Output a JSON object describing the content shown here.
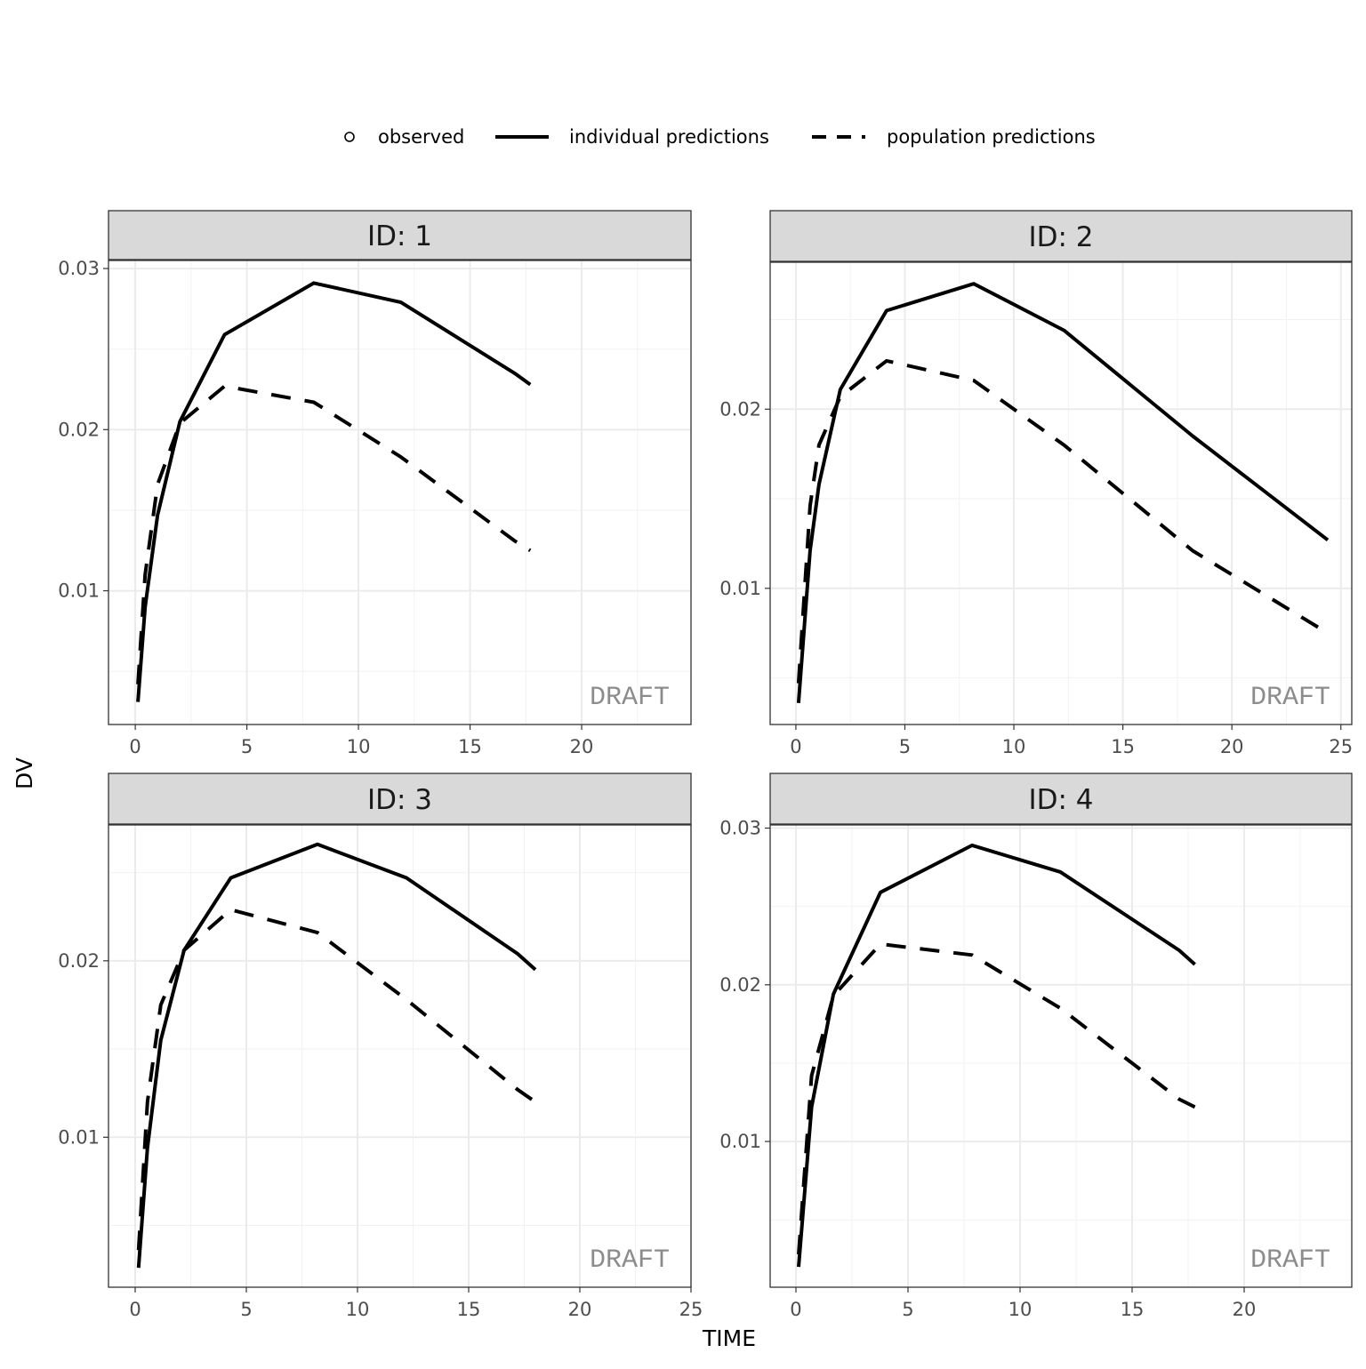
{
  "chart_data": {
    "type": "line",
    "xlabel": "TIME",
    "ylabel": "DV",
    "legend": {
      "placement": "top",
      "entries": [
        {
          "label": "observed",
          "style": "point"
        },
        {
          "label": "individual predictions",
          "style": "solid"
        },
        {
          "label": "population predictions",
          "style": "dashed"
        }
      ]
    },
    "watermark": "DRAFT",
    "grid": true,
    "panels": [
      {
        "strip": "ID: 1",
        "xlim": [
          -1.2,
          24.9
        ],
        "ylim": [
          0.0017,
          0.0305
        ],
        "xticks": [
          0,
          5,
          10,
          15,
          20
        ],
        "yticks": [
          0.01,
          0.02,
          0.03
        ],
        "xtick_labels": [
          "0",
          "5",
          "10",
          "15",
          "20"
        ],
        "ytick_labels": [
          "0.01",
          "0.02",
          "0.03"
        ],
        "series": [
          {
            "name": "individual predictions",
            "x": [
              0.12,
              0.44,
              1.0,
              2.0,
              4.0,
              8.0,
              11.9,
              17.0,
              17.7
            ],
            "y": [
              0.0031,
              0.009,
              0.0147,
              0.0205,
              0.0259,
              0.0291,
              0.0279,
              0.0235,
              0.0228
            ]
          },
          {
            "name": "population predictions",
            "x": [
              0.12,
              0.44,
              1.0,
              2.0,
              4.0,
              8.0,
              11.9,
              17.0,
              17.7
            ],
            "y": [
              0.0042,
              0.011,
              0.0166,
              0.0204,
              0.0227,
              0.0217,
              0.0183,
              0.0131,
              0.0125
            ]
          }
        ]
      },
      {
        "strip": "ID: 2",
        "xlim": [
          -1.18,
          25.5
        ],
        "ylim": [
          0.0024,
          0.0282
        ],
        "xticks": [
          0,
          5,
          10,
          15,
          20,
          25
        ],
        "yticks": [
          0.01,
          0.02
        ],
        "xtick_labels": [
          "0",
          "5",
          "10",
          "15",
          "20",
          "25"
        ],
        "ytick_labels": [
          "0.01",
          "0.02"
        ],
        "series": [
          {
            "name": "individual predictions",
            "x": [
              0.12,
              0.65,
              1.06,
              2.04,
              4.16,
              8.16,
              12.3,
              18.2,
              24.4
            ],
            "y": [
              0.0036,
              0.0121,
              0.0158,
              0.0211,
              0.0255,
              0.027,
              0.0244,
              0.0185,
              0.0127
            ]
          },
          {
            "name": "population predictions",
            "x": [
              0.12,
              0.65,
              1.06,
              2.04,
              4.16,
              8.16,
              12.3,
              18.2,
              24.4
            ],
            "y": [
              0.0047,
              0.0146,
              0.018,
              0.0207,
              0.0227,
              0.0216,
              0.018,
              0.0121,
              0.0075
            ]
          }
        ]
      },
      {
        "strip": "ID: 3",
        "xlim": [
          -1.2,
          25.0
        ],
        "ylim": [
          0.0015,
          0.0277
        ],
        "xticks": [
          0,
          5,
          10,
          15,
          20,
          25
        ],
        "yticks": [
          0.01,
          0.02
        ],
        "xtick_labels": [
          "0",
          "5",
          "10",
          "15",
          "20",
          "25"
        ],
        "ytick_labels": [
          "0.01",
          "0.02"
        ],
        "series": [
          {
            "name": "individual predictions",
            "x": [
              0.15,
              0.55,
              1.15,
              2.2,
              4.3,
              8.2,
              12.2,
              17.2,
              18.0
            ],
            "y": [
              0.0026,
              0.0094,
              0.0155,
              0.0206,
              0.0247,
              0.0266,
              0.0247,
              0.0204,
              0.0195
            ]
          },
          {
            "name": "population predictions",
            "x": [
              0.15,
              0.55,
              1.15,
              2.2,
              4.3,
              8.2,
              12.2,
              17.2,
              18.0
            ],
            "y": [
              0.0036,
              0.012,
              0.0175,
              0.0206,
              0.0229,
              0.0216,
              0.0178,
              0.0127,
              0.012
            ]
          }
        ]
      },
      {
        "strip": "ID: 4",
        "xlim": [
          -1.15,
          24.8
        ],
        "ylim": [
          0.0007,
          0.0302
        ],
        "xticks": [
          0,
          5,
          10,
          15,
          20
        ],
        "yticks": [
          0.01,
          0.02,
          0.03
        ],
        "xtick_labels": [
          "0",
          "5",
          "10",
          "15",
          "20"
        ],
        "ytick_labels": [
          "0.01",
          "0.02",
          "0.03"
        ],
        "series": [
          {
            "name": "individual predictions",
            "x": [
              0.12,
              0.7,
              1.67,
              3.77,
              7.86,
              11.8,
              17.1,
              17.8
            ],
            "y": [
              0.002,
              0.0122,
              0.0194,
              0.0259,
              0.0289,
              0.0272,
              0.0222,
              0.0213
            ]
          },
          {
            "name": "population predictions",
            "x": [
              0.12,
              0.7,
              1.67,
              3.77,
              7.86,
              11.8,
              17.1,
              17.8
            ],
            "y": [
              0.0028,
              0.0142,
              0.0193,
              0.0226,
              0.0219,
              0.0185,
              0.0127,
              0.0122
            ]
          }
        ]
      }
    ]
  }
}
